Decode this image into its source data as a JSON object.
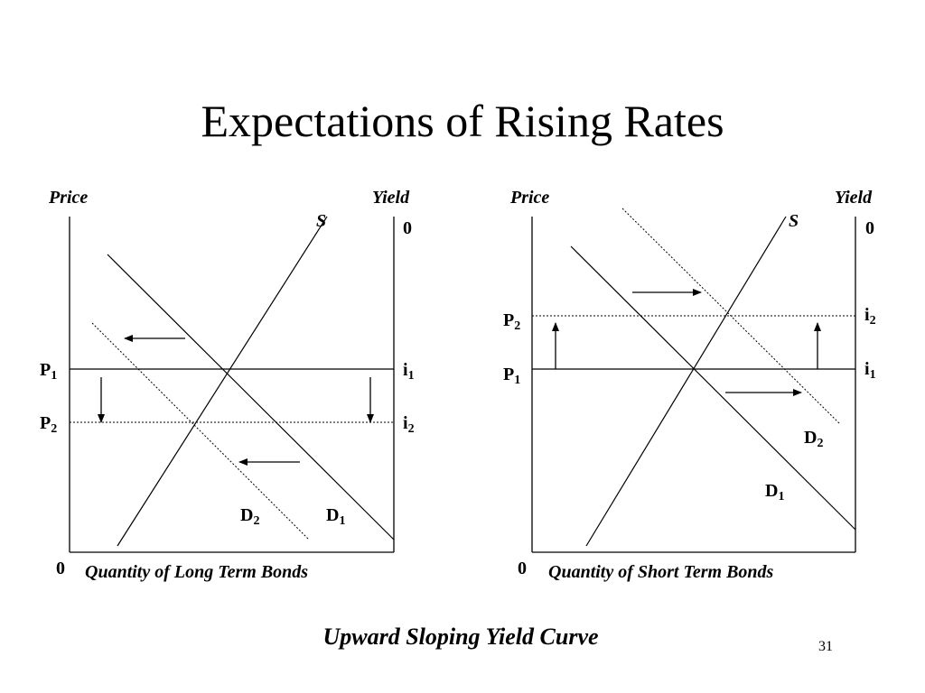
{
  "slide": {
    "title": "Expectations of Rising Rates",
    "caption": "Upward Sloping Yield Curve",
    "page_number": "31"
  },
  "panels": [
    {
      "id": "long-term",
      "price_axis": "Price",
      "yield_axis": "Yield",
      "origin": "0",
      "yield_zero": "0",
      "quantity_axis": "Quantity of Long Term Bonds",
      "supply": "S",
      "demand_1": {
        "base": "D",
        "sub": "1"
      },
      "demand_2": {
        "base": "D",
        "sub": "2"
      },
      "price_1": {
        "base": "P",
        "sub": "1"
      },
      "price_2": {
        "base": "P",
        "sub": "2"
      },
      "yield_1": {
        "base": "i",
        "sub": "1"
      },
      "yield_2": {
        "base": "i",
        "sub": "2"
      },
      "demand_shift": "left",
      "price_change": "down"
    },
    {
      "id": "short-term",
      "price_axis": "Price",
      "yield_axis": "Yield",
      "origin": "0",
      "yield_zero": "0",
      "quantity_axis": "Quantity of Short Term Bonds",
      "supply": "S",
      "demand_1": {
        "base": "D",
        "sub": "1"
      },
      "demand_2": {
        "base": "D",
        "sub": "2"
      },
      "price_1": {
        "base": "P",
        "sub": "1"
      },
      "price_2": {
        "base": "P",
        "sub": "2"
      },
      "yield_1": {
        "base": "i",
        "sub": "1"
      },
      "yield_2": {
        "base": "i",
        "sub": "2"
      },
      "demand_shift": "right",
      "price_change": "up"
    }
  ]
}
